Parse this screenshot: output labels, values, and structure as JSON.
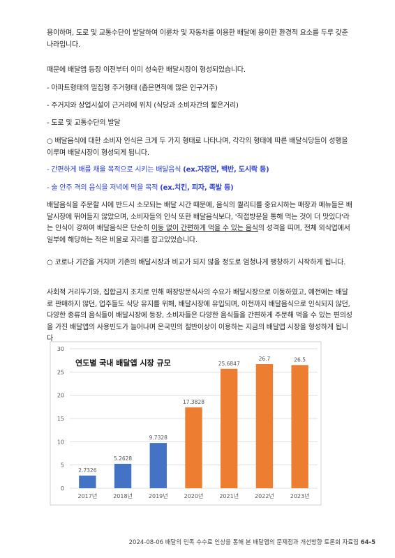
{
  "paragraphs": [
    "용이하며, 도로 및 교통수단이 발달하여 이륜차 및 자동차를 이용한 배달에 용이한 환경적 요소를 두루 갖춘 나라입니다.",
    "때문에 배달앱 등장 이전부터 이미 성숙한 배달시장이 형성되었습니다.",
    "- 아파트형태의 밀집형 주거형태 (좁은면적에 많은 인구거주)",
    "- 주거지와 상업시설이 근거리에 위치 (식당과 소비자간의 짧은거리)",
    "- 도로 및 교통수단의 발달",
    "○ 배달음식에 대한 소비자 인식은 크게 두 가지 형태로 나타나며, 각각의 형태에 따른 배달식당들이 성행을 이루며 배달시장이 형성되게 됩니다."
  ],
  "types": [
    {
      "text": "- 간편하게 배를 채울 목적으로 시키는 배달음식 ",
      "bold": "(ex.자장면, 백반, 도시락 등)"
    },
    {
      "text": "- 술 안주 격의 음식을 저녁에 먹을 목적 ",
      "bold": "(ex.치킨, 피자, 족발 등)"
    }
  ],
  "perception": {
    "before": "배달음식을 주문할 시에 반드시 소모되는 배달 시간 때문에, 음식의 퀄리티를 중요시하는 매장과 메뉴들은 배달시장에 뛰어들지 않았으며, 소비자들의 인식 또한 배달음식보다, '직접방문을 통해 먹는 것이 더 맛있다'라는 인식이 강하여 배달음식은 단순히 ",
    "underline": "이동 없이 간편하게 먹을 수 있는 음식",
    "after": "의 성격을 띠며, 전체 외식업에서 일부에 해당하는 적은 비율로 자리를 잡고있었습니다."
  },
  "covid": [
    "○ 코로나 기간을 거치며 기존의 배달시장과 비교가 되지 않을 정도로 엄청나게 팽창하기 시작하게 됩니다.",
    "사회적 거리두기와, 집합금지 조치로 인해 매장방문식사의 수요가 배달시장으로 이동하였고, 예전에는 배달로 판매하지 않던, 업주들도 식당 유지를 위해, 배달시장에 유입되며, 이전까지 배달음식으로 인식되지 않던, 다양한 종류의 음식들이 배달시장에 등장, 소비자들은 다양한 음식들을 간편하게 주문해 먹을 수 있는 편의성을 가진 배달앱의 사용빈도가 늘어나며 온국민의 절반이상이 이용하는 지금의 배달앱 시장을 형성하게 됩니다"
  ],
  "chart_data": {
    "type": "bar",
    "title": "연도별 국내 배달앱 시장 규모",
    "categories": [
      "2017년",
      "2018년",
      "2019년",
      "2020년",
      "2021년",
      "2022년",
      "2023년"
    ],
    "values": [
      2.7326,
      5.2628,
      9.7328,
      17.3828,
      25.6847,
      26.7,
      26.5
    ],
    "colors": [
      "#4472c4",
      "#4472c4",
      "#4472c4",
      "#ed7d31",
      "#ed7d31",
      "#ed7d31",
      "#ed7d31"
    ],
    "ylim": [
      0,
      30
    ],
    "yticks": [
      0,
      5,
      10,
      15,
      20,
      25,
      30
    ],
    "grid": true
  },
  "footer": {
    "text": "2024-08-06 배달의 민족 수수료 인상을 통해 본 배달앱의 문제점과 개선방향 토론회 자료집",
    "page": "64-5"
  }
}
